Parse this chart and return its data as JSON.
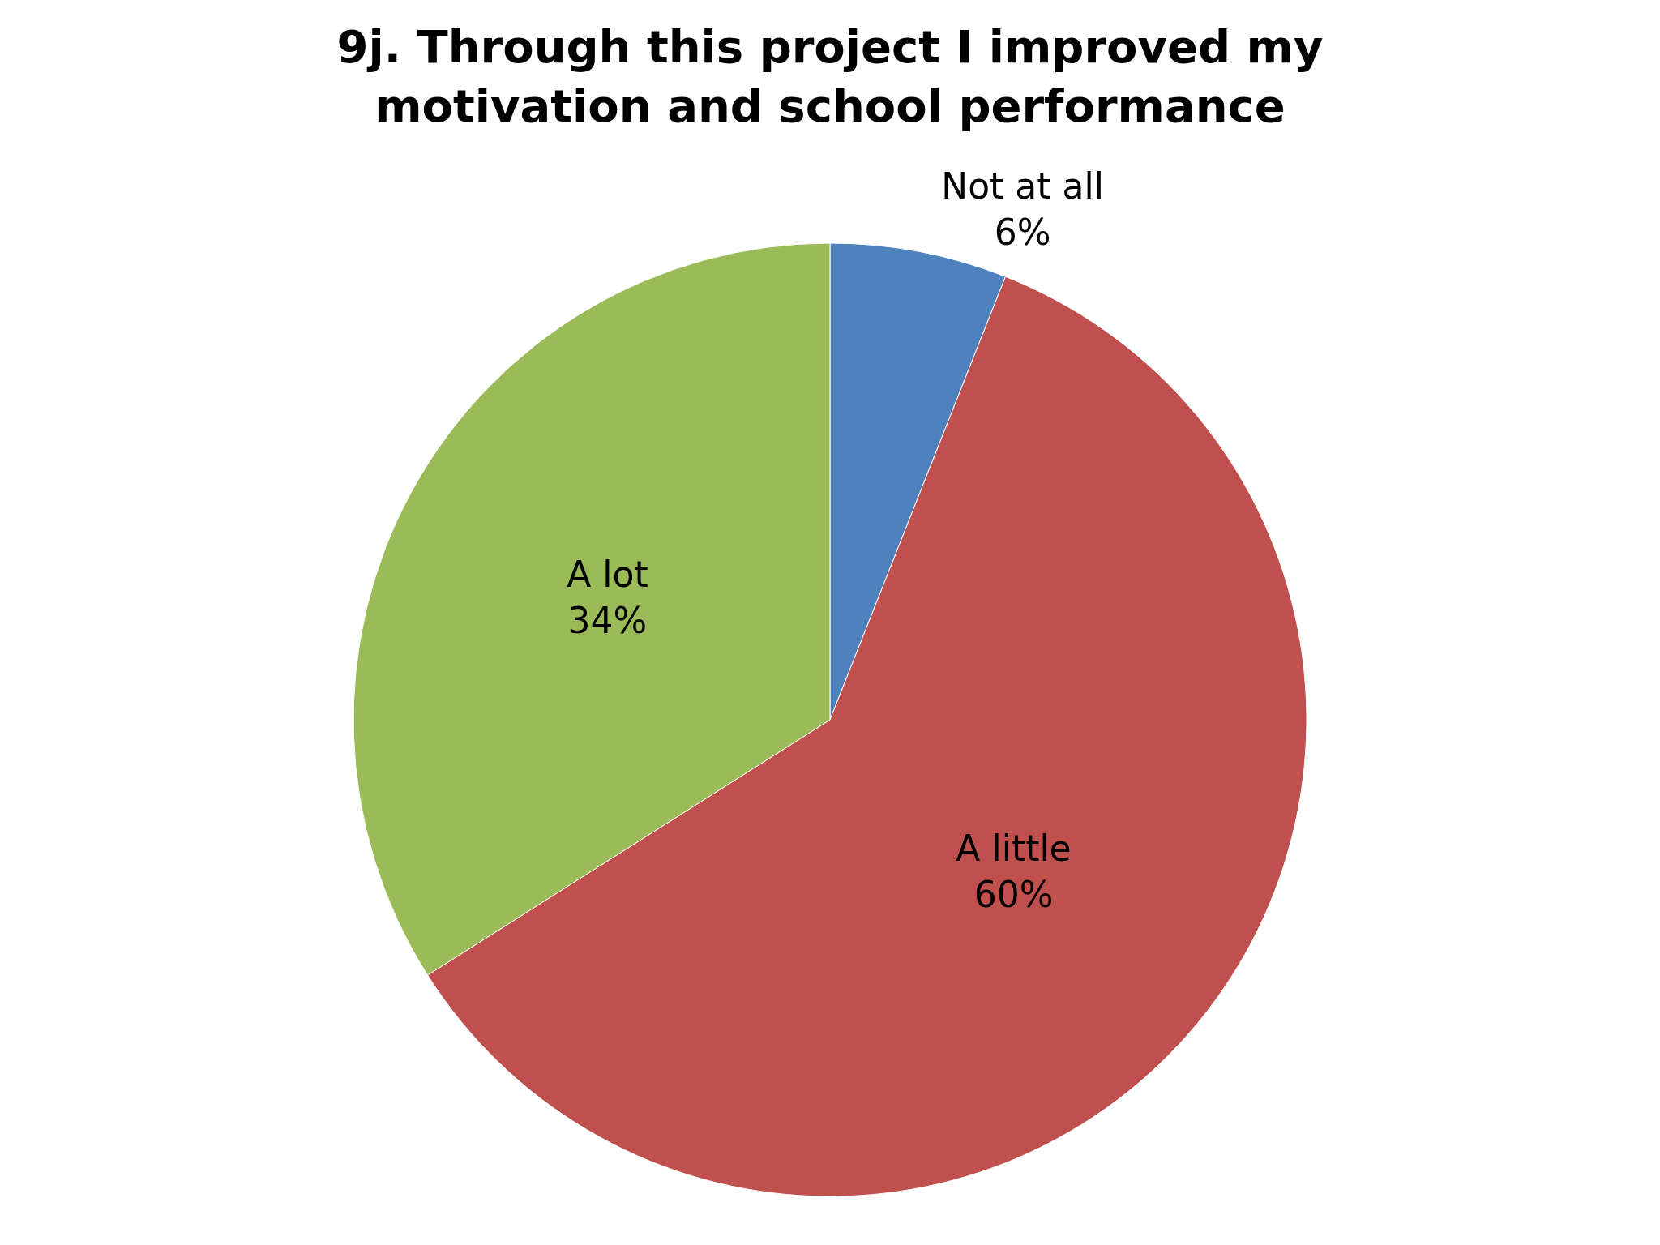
{
  "chart_data": {
    "type": "pie",
    "title": "9j. Through this project I improved my motivation and school performance",
    "categories": [
      "Not at all",
      "A little",
      "A lot"
    ],
    "values": [
      6,
      60,
      34
    ],
    "value_labels": [
      "6%",
      "60%",
      "34%"
    ],
    "colors": [
      "#4f81bd",
      "#c0504d",
      "#9bbb59"
    ],
    "legend": false
  }
}
